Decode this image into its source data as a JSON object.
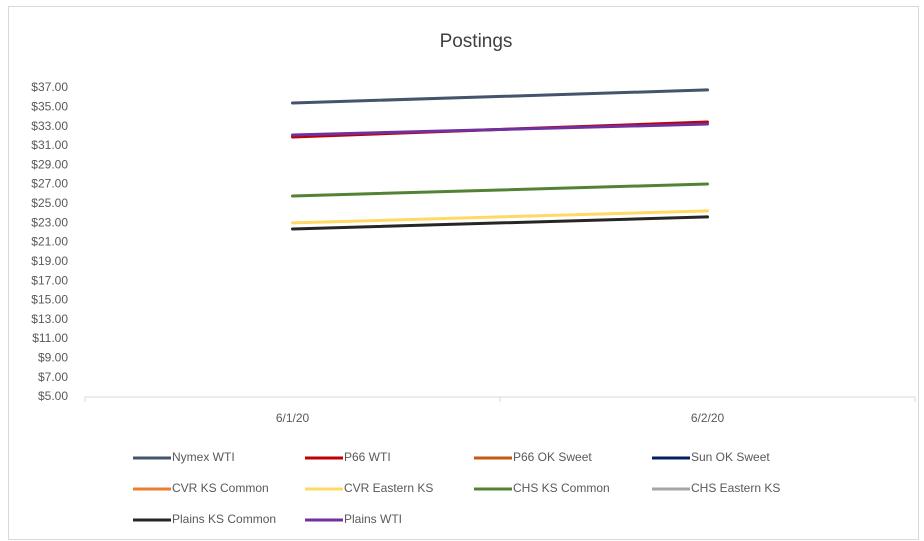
{
  "chart_data": {
    "type": "line",
    "title": "Postings",
    "categories": [
      "6/1/20",
      "6/2/20"
    ],
    "series": [
      {
        "name": "Nymex WTI",
        "color": "#44546a",
        "values": [
          35.45,
          36.8
        ]
      },
      {
        "name": "P66 WTI",
        "color": "#c00000",
        "values": [
          31.93,
          33.48
        ]
      },
      {
        "name": "P66 OK Sweet",
        "color": "#c55a11",
        "values": [
          null,
          null
        ]
      },
      {
        "name": "Sun OK Sweet",
        "color": "#002060",
        "values": [
          null,
          null
        ]
      },
      {
        "name": "CVR KS Common",
        "color": "#ed7d31",
        "values": [
          null,
          null
        ]
      },
      {
        "name": "CVR Eastern KS",
        "color": "#ffd966",
        "values": [
          23.03,
          24.27
        ]
      },
      {
        "name": "CHS KS Common",
        "color": "#548235",
        "values": [
          25.82,
          27.06
        ]
      },
      {
        "name": "CHS Eastern KS",
        "color": "#a5a5a5",
        "values": [
          null,
          null
        ]
      },
      {
        "name": "Plains KS Common",
        "color": "#262626",
        "values": [
          22.4,
          23.65
        ]
      },
      {
        "name": "Plains WTI",
        "color": "#7030a0",
        "values": [
          32.13,
          33.27
        ]
      }
    ],
    "ylim": [
      5,
      37
    ],
    "yticks": [
      {
        "value": 5,
        "label": "$5.00"
      },
      {
        "value": 7,
        "label": "$7.00"
      },
      {
        "value": 9,
        "label": "$9.00"
      },
      {
        "value": 11,
        "label": "$11.00"
      },
      {
        "value": 13,
        "label": "$13.00"
      },
      {
        "value": 15,
        "label": "$15.00"
      },
      {
        "value": 17,
        "label": "$17.00"
      },
      {
        "value": 19,
        "label": "$19.00"
      },
      {
        "value": 21,
        "label": "$21.00"
      },
      {
        "value": 23,
        "label": "$23.00"
      },
      {
        "value": 25,
        "label": "$25.00"
      },
      {
        "value": 27,
        "label": "$27.00"
      },
      {
        "value": 29,
        "label": "$29.00"
      },
      {
        "value": 31,
        "label": "$31.00"
      },
      {
        "value": 33,
        "label": "$33.00"
      },
      {
        "value": 35,
        "label": "$35.00"
      },
      {
        "value": 37,
        "label": "$37.00"
      }
    ],
    "grid": false,
    "legend": "bottom"
  }
}
